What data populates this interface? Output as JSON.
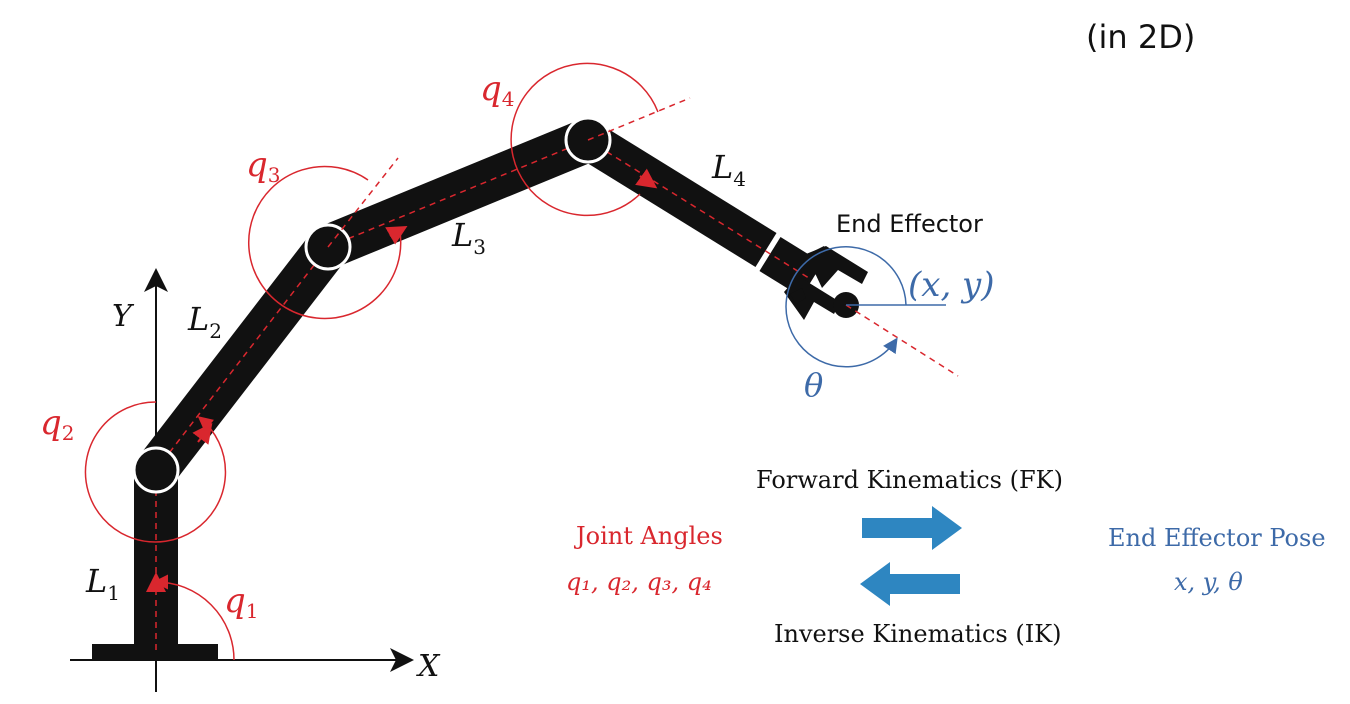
{
  "header": {
    "note": "(in 2D)"
  },
  "axes": {
    "x_label": "X",
    "y_label": "Y"
  },
  "joints": {
    "q1": "q",
    "q2": "q",
    "q3": "q",
    "q4": "q",
    "sub1": "1",
    "sub2": "2",
    "sub3": "3",
    "sub4": "4"
  },
  "links": {
    "L": "L",
    "sub1": "1",
    "sub2": "2",
    "sub3": "3",
    "sub4": "4"
  },
  "end_effector": {
    "label": "End Effector",
    "pose": "(x, y)",
    "theta": "θ"
  },
  "kinematics": {
    "forward": "Forward Kinematics (FK)",
    "inverse": "Inverse Kinematics (IK)",
    "joint_angles_title": "Joint Angles",
    "joint_angles_values": "q₁, q₂, q₃, q₄",
    "pose_title": "End Effector Pose",
    "pose_values": "x, y, θ"
  },
  "colors": {
    "red": "#d9272e",
    "blue": "#3d6aa8",
    "arrow": "#2e86c1",
    "link": "#111111"
  }
}
